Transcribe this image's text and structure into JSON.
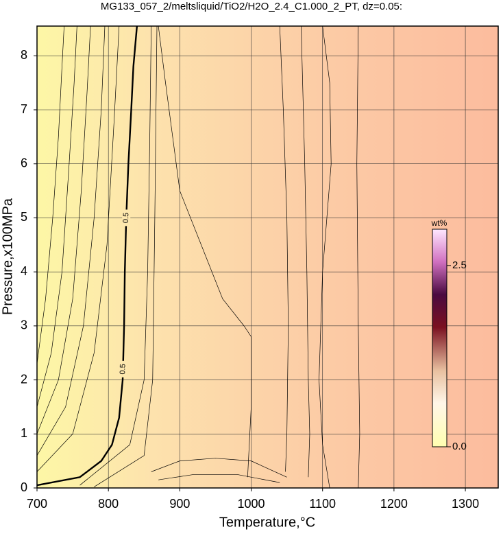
{
  "chart_data": {
    "type": "contour",
    "title": "MG133_057_2/meltsliquid/TiO2/H2O_2.4_C1.000_2_PT, dz=0.05:",
    "xlabel": "Temperature,°C",
    "ylabel": "Pressure,x100MPa",
    "xlim": [
      700,
      1346
    ],
    "ylim": [
      0,
      8.55
    ],
    "xticks": [
      700,
      800,
      900,
      1000,
      1100,
      1200,
      1300
    ],
    "yticks": [
      0,
      1,
      2,
      3,
      4,
      5,
      6,
      7,
      8
    ],
    "grid": true,
    "contours": [
      {
        "x": [
          700,
          712,
          722,
          730,
          735,
          738
        ],
        "y": [
          2.3,
          3.5,
          5,
          6.5,
          7.8,
          8.55
        ]
      },
      {
        "x": [
          700,
          720,
          735,
          745,
          752,
          756
        ],
        "y": [
          1.5,
          2.5,
          4,
          6,
          7.5,
          8.55
        ]
      },
      {
        "x": [
          700,
          730,
          750,
          762,
          770,
          775
        ],
        "y": [
          1.0,
          2.0,
          3.5,
          5.5,
          7.3,
          8.55
        ]
      },
      {
        "x": [
          700,
          740,
          765,
          780,
          790,
          795
        ],
        "y": [
          0.6,
          1.5,
          3,
          5,
          7,
          8.55
        ]
      },
      {
        "x": [
          700,
          750,
          780,
          798,
          808,
          815
        ],
        "y": [
          0.3,
          1.0,
          2.5,
          4.5,
          6.8,
          8.55
        ]
      },
      {
        "level": 0.5,
        "x": [
          700,
          760,
          790,
          805,
          815,
          820,
          822,
          823,
          825,
          828,
          832,
          835,
          840
        ],
        "y": [
          0.05,
          0.2,
          0.5,
          0.8,
          1.3,
          2.0,
          3,
          4,
          5,
          6,
          7,
          7.8,
          8.55
        ]
      },
      {
        "x": [
          760,
          830,
          850,
          855,
          858,
          860
        ],
        "y": [
          0.05,
          0.8,
          2,
          4,
          6.5,
          8.55
        ]
      },
      {
        "x": [
          780,
          850,
          862,
          865,
          868
        ],
        "y": [
          0.02,
          0.6,
          2,
          5,
          8.55
        ]
      },
      {
        "x": [
          860,
          900,
          950,
          1000,
          1050
        ],
        "y": [
          0.3,
          0.5,
          0.55,
          0.5,
          0.2
        ]
      },
      {
        "x": [
          870,
          920,
          980,
          1040
        ],
        "y": [
          0.15,
          0.25,
          0.25,
          0.1
        ]
      },
      {
        "x": [
          870,
          880,
          890,
          900,
          930,
          960,
          990,
          1000,
          1000,
          995
        ],
        "y": [
          8.55,
          7.5,
          6.5,
          5.5,
          4.5,
          3.5,
          3.0,
          2.8,
          1.5,
          0.2
        ]
      },
      {
        "x": [
          1040,
          1045,
          1050,
          1052,
          1050,
          1048
        ],
        "y": [
          8.55,
          7,
          5,
          3,
          1,
          0.3
        ]
      },
      {
        "x": [
          1070,
          1075,
          1078,
          1080,
          1082,
          1080
        ],
        "y": [
          8.55,
          6,
          4,
          2,
          1,
          0.2
        ]
      },
      {
        "x": [
          1100,
          1110,
          1112,
          1100,
          1095,
          1100,
          1110
        ],
        "y": [
          8.55,
          7.5,
          6,
          4,
          2,
          0.8,
          0
        ]
      },
      {
        "x": [
          1150,
          1148,
          1150,
          1152,
          1150
        ],
        "y": [
          8.55,
          6,
          3,
          1,
          0
        ]
      }
    ],
    "colorbar": {
      "label": "wt%",
      "lim": [
        0,
        3.0
      ],
      "ticks": [
        {
          "value": 0,
          "label": "0.0"
        },
        {
          "value": 2.5,
          "label": "2.5"
        }
      ]
    }
  }
}
